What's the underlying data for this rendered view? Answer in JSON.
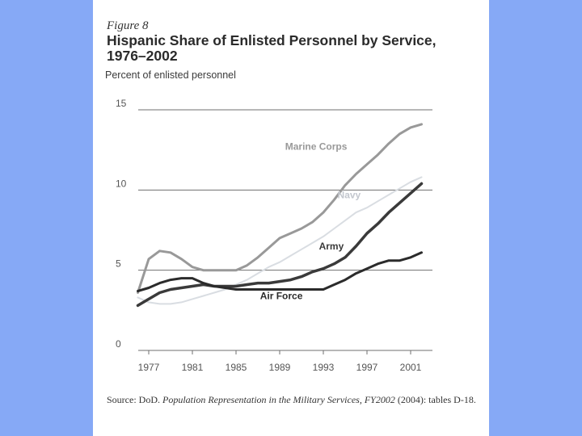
{
  "figure": {
    "label": "Figure 8",
    "source_prefix": "Source: DoD.",
    "source_publication": "Population Representation in the Military Services, FY2002",
    "source_suffix": "(2004): tables D-18."
  },
  "colors": {
    "background": "#86a9f6",
    "marine": "#999999",
    "navy": "#d9dde2",
    "army": "#3a3a3a",
    "airforce": "#2b2b2b",
    "grid": "#6f6f6f"
  },
  "chart_data": {
    "type": "line",
    "title": "Hispanic Share of Enlisted Personnel by Service, 1976–2002",
    "ylabel": "Percent of enlisted personnel",
    "xlabel": "",
    "xlim": [
      1975,
      2003
    ],
    "ylim": [
      0,
      15
    ],
    "xticks": [
      1977,
      1981,
      1985,
      1989,
      1993,
      1997,
      2001
    ],
    "yticks": [
      0,
      5,
      10,
      15
    ],
    "grid": true,
    "series": [
      {
        "name": "Marine Corps",
        "key": "marine",
        "x": [
          1976,
          1977,
          1978,
          1979,
          1980,
          1981,
          1982,
          1983,
          1984,
          1985,
          1986,
          1987,
          1988,
          1989,
          1990,
          1991,
          1992,
          1993,
          1994,
          1995,
          1996,
          1997,
          1998,
          1999,
          2000,
          2001,
          2002
        ],
        "values": [
          3.6,
          5.7,
          6.2,
          6.1,
          5.7,
          5.2,
          5.0,
          5.0,
          5.0,
          5.0,
          5.3,
          5.8,
          6.4,
          7.0,
          7.3,
          7.6,
          8.0,
          8.6,
          9.4,
          10.3,
          11.0,
          11.6,
          12.2,
          12.9,
          13.5,
          13.9,
          14.1
        ]
      },
      {
        "name": "Navy",
        "key": "navy",
        "x": [
          1976,
          1977,
          1978,
          1979,
          1980,
          1981,
          1982,
          1983,
          1984,
          1985,
          1986,
          1987,
          1988,
          1989,
          1990,
          1991,
          1992,
          1993,
          1994,
          1995,
          1996,
          1997,
          1998,
          1999,
          2000,
          2001,
          2002
        ],
        "values": [
          3.3,
          3.0,
          2.9,
          2.9,
          3.0,
          3.2,
          3.4,
          3.6,
          3.8,
          4.1,
          4.4,
          4.8,
          5.2,
          5.5,
          5.9,
          6.3,
          6.7,
          7.1,
          7.6,
          8.1,
          8.6,
          8.9,
          9.3,
          9.7,
          10.1,
          10.5,
          10.8
        ]
      },
      {
        "name": "Army",
        "key": "army",
        "x": [
          1976,
          1977,
          1978,
          1979,
          1980,
          1981,
          1982,
          1983,
          1984,
          1985,
          1986,
          1987,
          1988,
          1989,
          1990,
          1991,
          1992,
          1993,
          1994,
          1995,
          1996,
          1997,
          1998,
          1999,
          2000,
          2001,
          2002
        ],
        "values": [
          2.8,
          3.2,
          3.6,
          3.8,
          3.9,
          4.0,
          4.1,
          4.0,
          4.0,
          4.0,
          4.1,
          4.2,
          4.2,
          4.3,
          4.4,
          4.6,
          4.9,
          5.1,
          5.4,
          5.8,
          6.5,
          7.3,
          7.9,
          8.6,
          9.2,
          9.8,
          10.4
        ]
      },
      {
        "name": "Air Force",
        "key": "airforce",
        "x": [
          1976,
          1977,
          1978,
          1979,
          1980,
          1981,
          1982,
          1983,
          1984,
          1985,
          1986,
          1987,
          1988,
          1989,
          1990,
          1991,
          1992,
          1993,
          1994,
          1995,
          1996,
          1997,
          1998,
          1999,
          2000,
          2001,
          2002
        ],
        "values": [
          3.7,
          3.9,
          4.2,
          4.4,
          4.5,
          4.5,
          4.2,
          4.0,
          3.9,
          3.8,
          3.8,
          3.8,
          3.8,
          3.8,
          3.8,
          3.8,
          3.8,
          3.8,
          4.1,
          4.4,
          4.8,
          5.1,
          5.4,
          5.6,
          5.6,
          5.8,
          6.1
        ]
      }
    ],
    "annotations": [
      {
        "text": "Marine Corps",
        "series": "marine",
        "x": 1989.5,
        "y": 12.5
      },
      {
        "text": "Navy",
        "series": "navy",
        "x": 1994.3,
        "y": 9.5
      },
      {
        "text": "Army",
        "series": "army",
        "x": 1992.6,
        "y": 6.3
      },
      {
        "text": "Air Force",
        "series": "airforce",
        "x": 1987.2,
        "y": 3.2
      }
    ]
  }
}
